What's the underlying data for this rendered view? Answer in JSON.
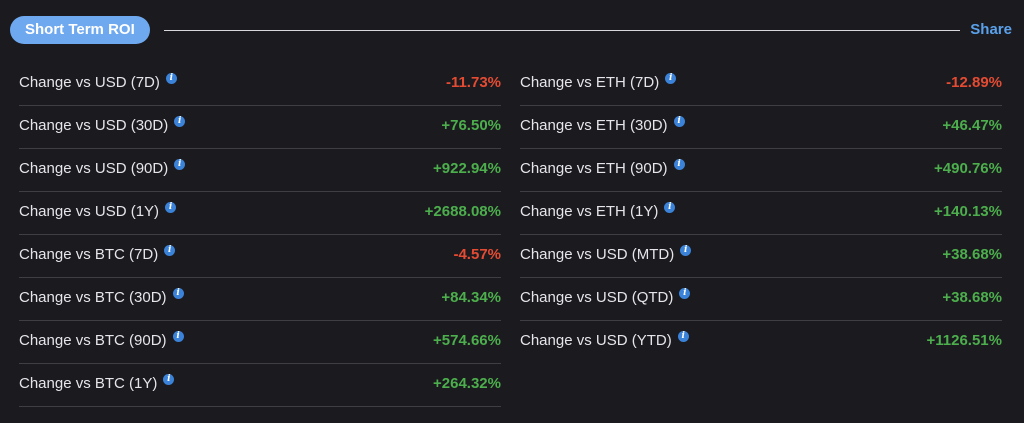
{
  "header": {
    "title": "Short Term ROI",
    "share_label": "Share"
  },
  "colors": {
    "accent": "#6ea8ef",
    "positive": "#4cae4c",
    "negative": "#e54b33",
    "info_icon": "#3b82d9"
  },
  "icons": {
    "info": "info-icon"
  },
  "left": [
    {
      "label": "Change vs USD (7D)",
      "value": "-11.73%",
      "sign": "neg"
    },
    {
      "label": "Change vs USD (30D)",
      "value": "+76.50%",
      "sign": "pos"
    },
    {
      "label": "Change vs USD (90D)",
      "value": "+922.94%",
      "sign": "pos"
    },
    {
      "label": "Change vs USD (1Y)",
      "value": "+2688.08%",
      "sign": "pos"
    },
    {
      "label": "Change vs BTC (7D)",
      "value": "-4.57%",
      "sign": "neg"
    },
    {
      "label": "Change vs BTC (30D)",
      "value": "+84.34%",
      "sign": "pos"
    },
    {
      "label": "Change vs BTC (90D)",
      "value": "+574.66%",
      "sign": "pos"
    },
    {
      "label": "Change vs BTC (1Y)",
      "value": "+264.32%",
      "sign": "pos"
    }
  ],
  "right": [
    {
      "label": "Change vs ETH (7D)",
      "value": "-12.89%",
      "sign": "neg"
    },
    {
      "label": "Change vs ETH (30D)",
      "value": "+46.47%",
      "sign": "pos"
    },
    {
      "label": "Change vs ETH (90D)",
      "value": "+490.76%",
      "sign": "pos"
    },
    {
      "label": "Change vs ETH (1Y)",
      "value": "+140.13%",
      "sign": "pos"
    },
    {
      "label": "Change vs USD (MTD)",
      "value": "+38.68%",
      "sign": "pos"
    },
    {
      "label": "Change vs USD (QTD)",
      "value": "+38.68%",
      "sign": "pos"
    },
    {
      "label": "Change vs USD (YTD)",
      "value": "+1126.51%",
      "sign": "pos"
    }
  ]
}
